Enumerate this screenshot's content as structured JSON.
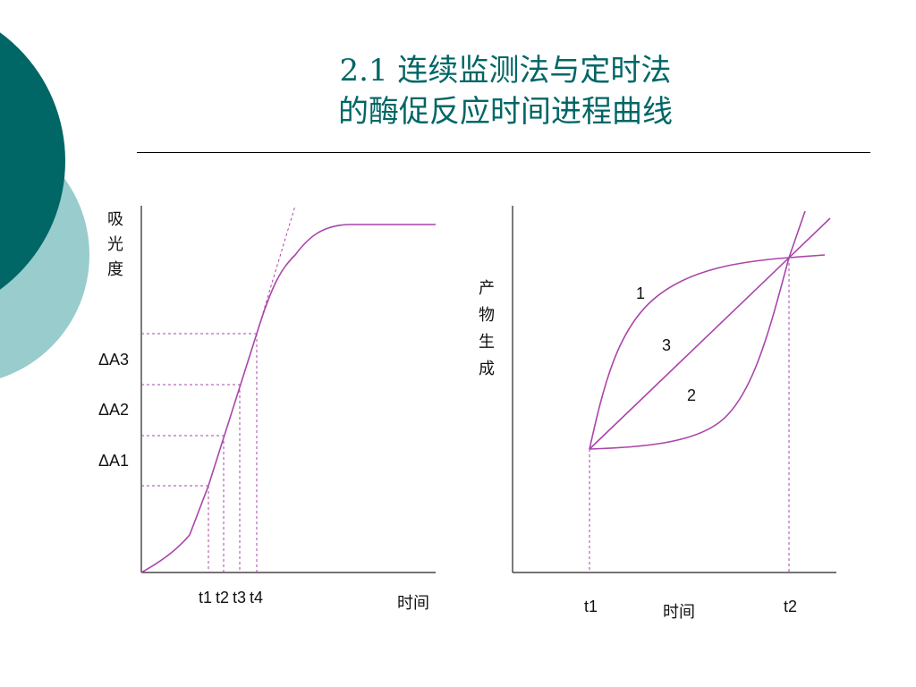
{
  "slide": {
    "title_line1": "2.1 连续监测法与定时法",
    "title_line2": "的酶促反应时间进程曲线"
  },
  "colors": {
    "accent_dark": "#006666",
    "accent_light": "#99cccc",
    "curve": "#aa44aa",
    "axis": "#222222"
  },
  "left_diagram": {
    "y_axis_label": "吸光度",
    "delta_labels": [
      "ΔA3",
      "ΔA2",
      "ΔA1"
    ],
    "time_ticks": [
      "t1",
      "t2",
      "t3",
      "t4"
    ],
    "x_axis_label": "时间"
  },
  "right_diagram": {
    "y_axis_label": "产物生成",
    "curve_labels": [
      "1",
      "3",
      "2"
    ],
    "time_ticks": [
      "t1",
      "t2"
    ],
    "x_axis_label": "时间"
  }
}
